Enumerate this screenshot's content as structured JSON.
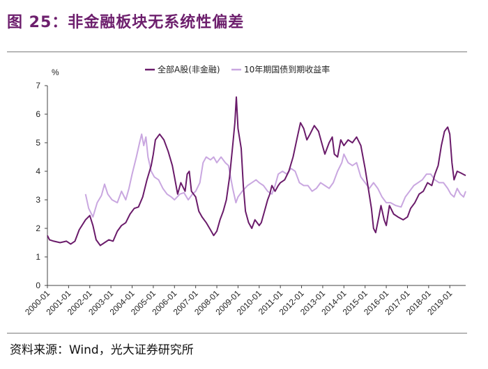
{
  "figure": {
    "title": "图 25：非金融板块无系统性偏差",
    "source": "资料来源：Wind，光大证券研究所"
  },
  "chart_data": {
    "type": "line",
    "ylabel": "%",
    "ylim": [
      0,
      7
    ],
    "yticks": [
      "0",
      "1",
      "2",
      "3",
      "4",
      "5",
      "6",
      "7"
    ],
    "xlim": [
      2000.0,
      2019.75
    ],
    "xticks": [
      "2000-01",
      "2001-01",
      "2002-01",
      "2003-01",
      "2004-01",
      "2005-01",
      "2006-01",
      "2007-01",
      "2008-01",
      "2009-01",
      "2010-01",
      "2011-01",
      "2012-01",
      "2013-01",
      "2014-01",
      "2015-01",
      "2016-01",
      "2017-01",
      "2018-01",
      "2019-01"
    ],
    "legend_position": "top-center",
    "colors": {
      "series1": "#6a1b6a",
      "series2": "#c9a7e0"
    },
    "series": [
      {
        "name": "全部A股(非金融)",
        "points": [
          [
            2000.0,
            1.75
          ],
          [
            2000.1,
            1.6
          ],
          [
            2000.3,
            1.55
          ],
          [
            2000.6,
            1.5
          ],
          [
            2000.9,
            1.55
          ],
          [
            2001.1,
            1.45
          ],
          [
            2001.3,
            1.55
          ],
          [
            2001.5,
            1.95
          ],
          [
            2001.8,
            2.3
          ],
          [
            2002.0,
            2.45
          ],
          [
            2002.15,
            2.1
          ],
          [
            2002.3,
            1.6
          ],
          [
            2002.5,
            1.4
          ],
          [
            2002.7,
            1.5
          ],
          [
            2002.9,
            1.6
          ],
          [
            2003.1,
            1.55
          ],
          [
            2003.3,
            1.9
          ],
          [
            2003.5,
            2.1
          ],
          [
            2003.7,
            2.2
          ],
          [
            2003.9,
            2.5
          ],
          [
            2004.1,
            2.7
          ],
          [
            2004.3,
            2.75
          ],
          [
            2004.5,
            3.1
          ],
          [
            2004.7,
            3.7
          ],
          [
            2004.9,
            4.2
          ],
          [
            2005.0,
            4.6
          ],
          [
            2005.1,
            5.1
          ],
          [
            2005.3,
            5.3
          ],
          [
            2005.5,
            5.1
          ],
          [
            2005.7,
            4.7
          ],
          [
            2005.9,
            4.2
          ],
          [
            2006.0,
            3.8
          ],
          [
            2006.15,
            3.2
          ],
          [
            2006.3,
            3.6
          ],
          [
            2006.5,
            3.3
          ],
          [
            2006.6,
            3.9
          ],
          [
            2006.7,
            4.0
          ],
          [
            2006.8,
            3.3
          ],
          [
            2007.0,
            3.1
          ],
          [
            2007.15,
            2.6
          ],
          [
            2007.3,
            2.4
          ],
          [
            2007.5,
            2.2
          ],
          [
            2007.7,
            1.95
          ],
          [
            2007.85,
            1.75
          ],
          [
            2008.0,
            1.9
          ],
          [
            2008.15,
            2.3
          ],
          [
            2008.3,
            2.6
          ],
          [
            2008.45,
            3.0
          ],
          [
            2008.6,
            3.8
          ],
          [
            2008.75,
            4.9
          ],
          [
            2008.85,
            5.7
          ],
          [
            2008.92,
            6.6
          ],
          [
            2009.0,
            5.5
          ],
          [
            2009.15,
            4.8
          ],
          [
            2009.25,
            3.5
          ],
          [
            2009.35,
            2.6
          ],
          [
            2009.5,
            2.2
          ],
          [
            2009.65,
            2.0
          ],
          [
            2009.8,
            2.3
          ],
          [
            2010.0,
            2.1
          ],
          [
            2010.1,
            2.2
          ],
          [
            2010.25,
            2.6
          ],
          [
            2010.4,
            3.0
          ],
          [
            2010.5,
            3.2
          ],
          [
            2010.6,
            3.5
          ],
          [
            2010.75,
            3.3
          ],
          [
            2010.9,
            3.5
          ],
          [
            2011.0,
            3.6
          ],
          [
            2011.2,
            3.7
          ],
          [
            2011.4,
            4.0
          ],
          [
            2011.6,
            4.5
          ],
          [
            2011.8,
            5.2
          ],
          [
            2011.95,
            5.7
          ],
          [
            2012.1,
            5.5
          ],
          [
            2012.25,
            5.1
          ],
          [
            2012.4,
            5.3
          ],
          [
            2012.6,
            5.6
          ],
          [
            2012.8,
            5.4
          ],
          [
            2012.95,
            5.0
          ],
          [
            2013.1,
            4.6
          ],
          [
            2013.3,
            5.0
          ],
          [
            2013.45,
            5.2
          ],
          [
            2013.55,
            4.6
          ],
          [
            2013.7,
            4.5
          ],
          [
            2013.85,
            5.1
          ],
          [
            2014.0,
            4.9
          ],
          [
            2014.2,
            5.1
          ],
          [
            2014.4,
            5.0
          ],
          [
            2014.6,
            5.2
          ],
          [
            2014.8,
            4.9
          ],
          [
            2015.0,
            4.1
          ],
          [
            2015.15,
            3.4
          ],
          [
            2015.3,
            2.7
          ],
          [
            2015.4,
            2.0
          ],
          [
            2015.5,
            1.85
          ],
          [
            2015.65,
            2.4
          ],
          [
            2015.75,
            2.8
          ],
          [
            2015.9,
            2.3
          ],
          [
            2016.0,
            2.1
          ],
          [
            2016.15,
            2.8
          ],
          [
            2016.35,
            2.5
          ],
          [
            2016.55,
            2.4
          ],
          [
            2016.8,
            2.3
          ],
          [
            2017.0,
            2.4
          ],
          [
            2017.15,
            2.7
          ],
          [
            2017.35,
            2.9
          ],
          [
            2017.55,
            3.2
          ],
          [
            2017.75,
            3.3
          ],
          [
            2017.95,
            3.6
          ],
          [
            2018.15,
            3.5
          ],
          [
            2018.3,
            3.9
          ],
          [
            2018.45,
            4.2
          ],
          [
            2018.6,
            4.9
          ],
          [
            2018.75,
            5.4
          ],
          [
            2018.9,
            5.55
          ],
          [
            2019.0,
            5.3
          ],
          [
            2019.1,
            4.3
          ],
          [
            2019.2,
            3.7
          ],
          [
            2019.35,
            4.0
          ],
          [
            2019.5,
            3.95
          ],
          [
            2019.75,
            3.85
          ]
        ]
      },
      {
        "name": "10年期国债到期收益率",
        "points": [
          [
            2001.8,
            3.2
          ],
          [
            2001.95,
            2.7
          ],
          [
            2002.15,
            2.4
          ],
          [
            2002.35,
            2.9
          ],
          [
            2002.55,
            3.15
          ],
          [
            2002.7,
            3.55
          ],
          [
            2002.85,
            3.2
          ],
          [
            2003.05,
            3.0
          ],
          [
            2003.3,
            2.9
          ],
          [
            2003.5,
            3.3
          ],
          [
            2003.7,
            3.0
          ],
          [
            2003.85,
            3.4
          ],
          [
            2004.0,
            3.9
          ],
          [
            2004.2,
            4.5
          ],
          [
            2004.35,
            5.0
          ],
          [
            2004.45,
            5.3
          ],
          [
            2004.55,
            4.9
          ],
          [
            2004.65,
            5.2
          ],
          [
            2004.75,
            4.5
          ],
          [
            2004.9,
            4.0
          ],
          [
            2005.05,
            3.8
          ],
          [
            2005.25,
            3.7
          ],
          [
            2005.45,
            3.4
          ],
          [
            2005.65,
            3.2
          ],
          [
            2005.85,
            3.1
          ],
          [
            2006.0,
            3.0
          ],
          [
            2006.25,
            3.2
          ],
          [
            2006.45,
            3.25
          ],
          [
            2006.65,
            3.0
          ],
          [
            2006.85,
            3.2
          ],
          [
            2007.0,
            3.3
          ],
          [
            2007.2,
            3.6
          ],
          [
            2007.35,
            4.3
          ],
          [
            2007.5,
            4.5
          ],
          [
            2007.7,
            4.4
          ],
          [
            2007.85,
            4.5
          ],
          [
            2008.0,
            4.3
          ],
          [
            2008.2,
            4.5
          ],
          [
            2008.4,
            4.3
          ],
          [
            2008.55,
            4.2
          ],
          [
            2008.75,
            3.4
          ],
          [
            2008.9,
            2.9
          ],
          [
            2009.0,
            3.1
          ],
          [
            2009.2,
            3.3
          ],
          [
            2009.45,
            3.5
          ],
          [
            2009.65,
            3.6
          ],
          [
            2009.85,
            3.7
          ],
          [
            2010.0,
            3.6
          ],
          [
            2010.2,
            3.5
          ],
          [
            2010.4,
            3.3
          ],
          [
            2010.6,
            3.2
          ],
          [
            2010.75,
            3.5
          ],
          [
            2010.9,
            3.9
          ],
          [
            2011.1,
            4.0
          ],
          [
            2011.3,
            3.9
          ],
          [
            2011.5,
            4.1
          ],
          [
            2011.7,
            4.0
          ],
          [
            2011.9,
            3.6
          ],
          [
            2012.1,
            3.5
          ],
          [
            2012.3,
            3.5
          ],
          [
            2012.5,
            3.3
          ],
          [
            2012.7,
            3.4
          ],
          [
            2012.9,
            3.6
          ],
          [
            2013.1,
            3.5
          ],
          [
            2013.3,
            3.4
          ],
          [
            2013.5,
            3.6
          ],
          [
            2013.7,
            4.0
          ],
          [
            2013.9,
            4.3
          ],
          [
            2014.0,
            4.6
          ],
          [
            2014.2,
            4.3
          ],
          [
            2014.4,
            4.2
          ],
          [
            2014.6,
            4.3
          ],
          [
            2014.8,
            3.8
          ],
          [
            2015.0,
            3.6
          ],
          [
            2015.2,
            3.4
          ],
          [
            2015.4,
            3.6
          ],
          [
            2015.6,
            3.4
          ],
          [
            2015.8,
            3.1
          ],
          [
            2016.0,
            2.9
          ],
          [
            2016.2,
            2.9
          ],
          [
            2016.45,
            2.8
          ],
          [
            2016.7,
            2.75
          ],
          [
            2016.9,
            3.1
          ],
          [
            2017.1,
            3.3
          ],
          [
            2017.3,
            3.5
          ],
          [
            2017.5,
            3.6
          ],
          [
            2017.7,
            3.7
          ],
          [
            2017.9,
            3.9
          ],
          [
            2018.1,
            3.9
          ],
          [
            2018.3,
            3.7
          ],
          [
            2018.5,
            3.6
          ],
          [
            2018.7,
            3.6
          ],
          [
            2018.9,
            3.4
          ],
          [
            2019.05,
            3.2
          ],
          [
            2019.2,
            3.1
          ],
          [
            2019.35,
            3.4
          ],
          [
            2019.5,
            3.2
          ],
          [
            2019.65,
            3.1
          ],
          [
            2019.75,
            3.3
          ]
        ]
      }
    ]
  }
}
